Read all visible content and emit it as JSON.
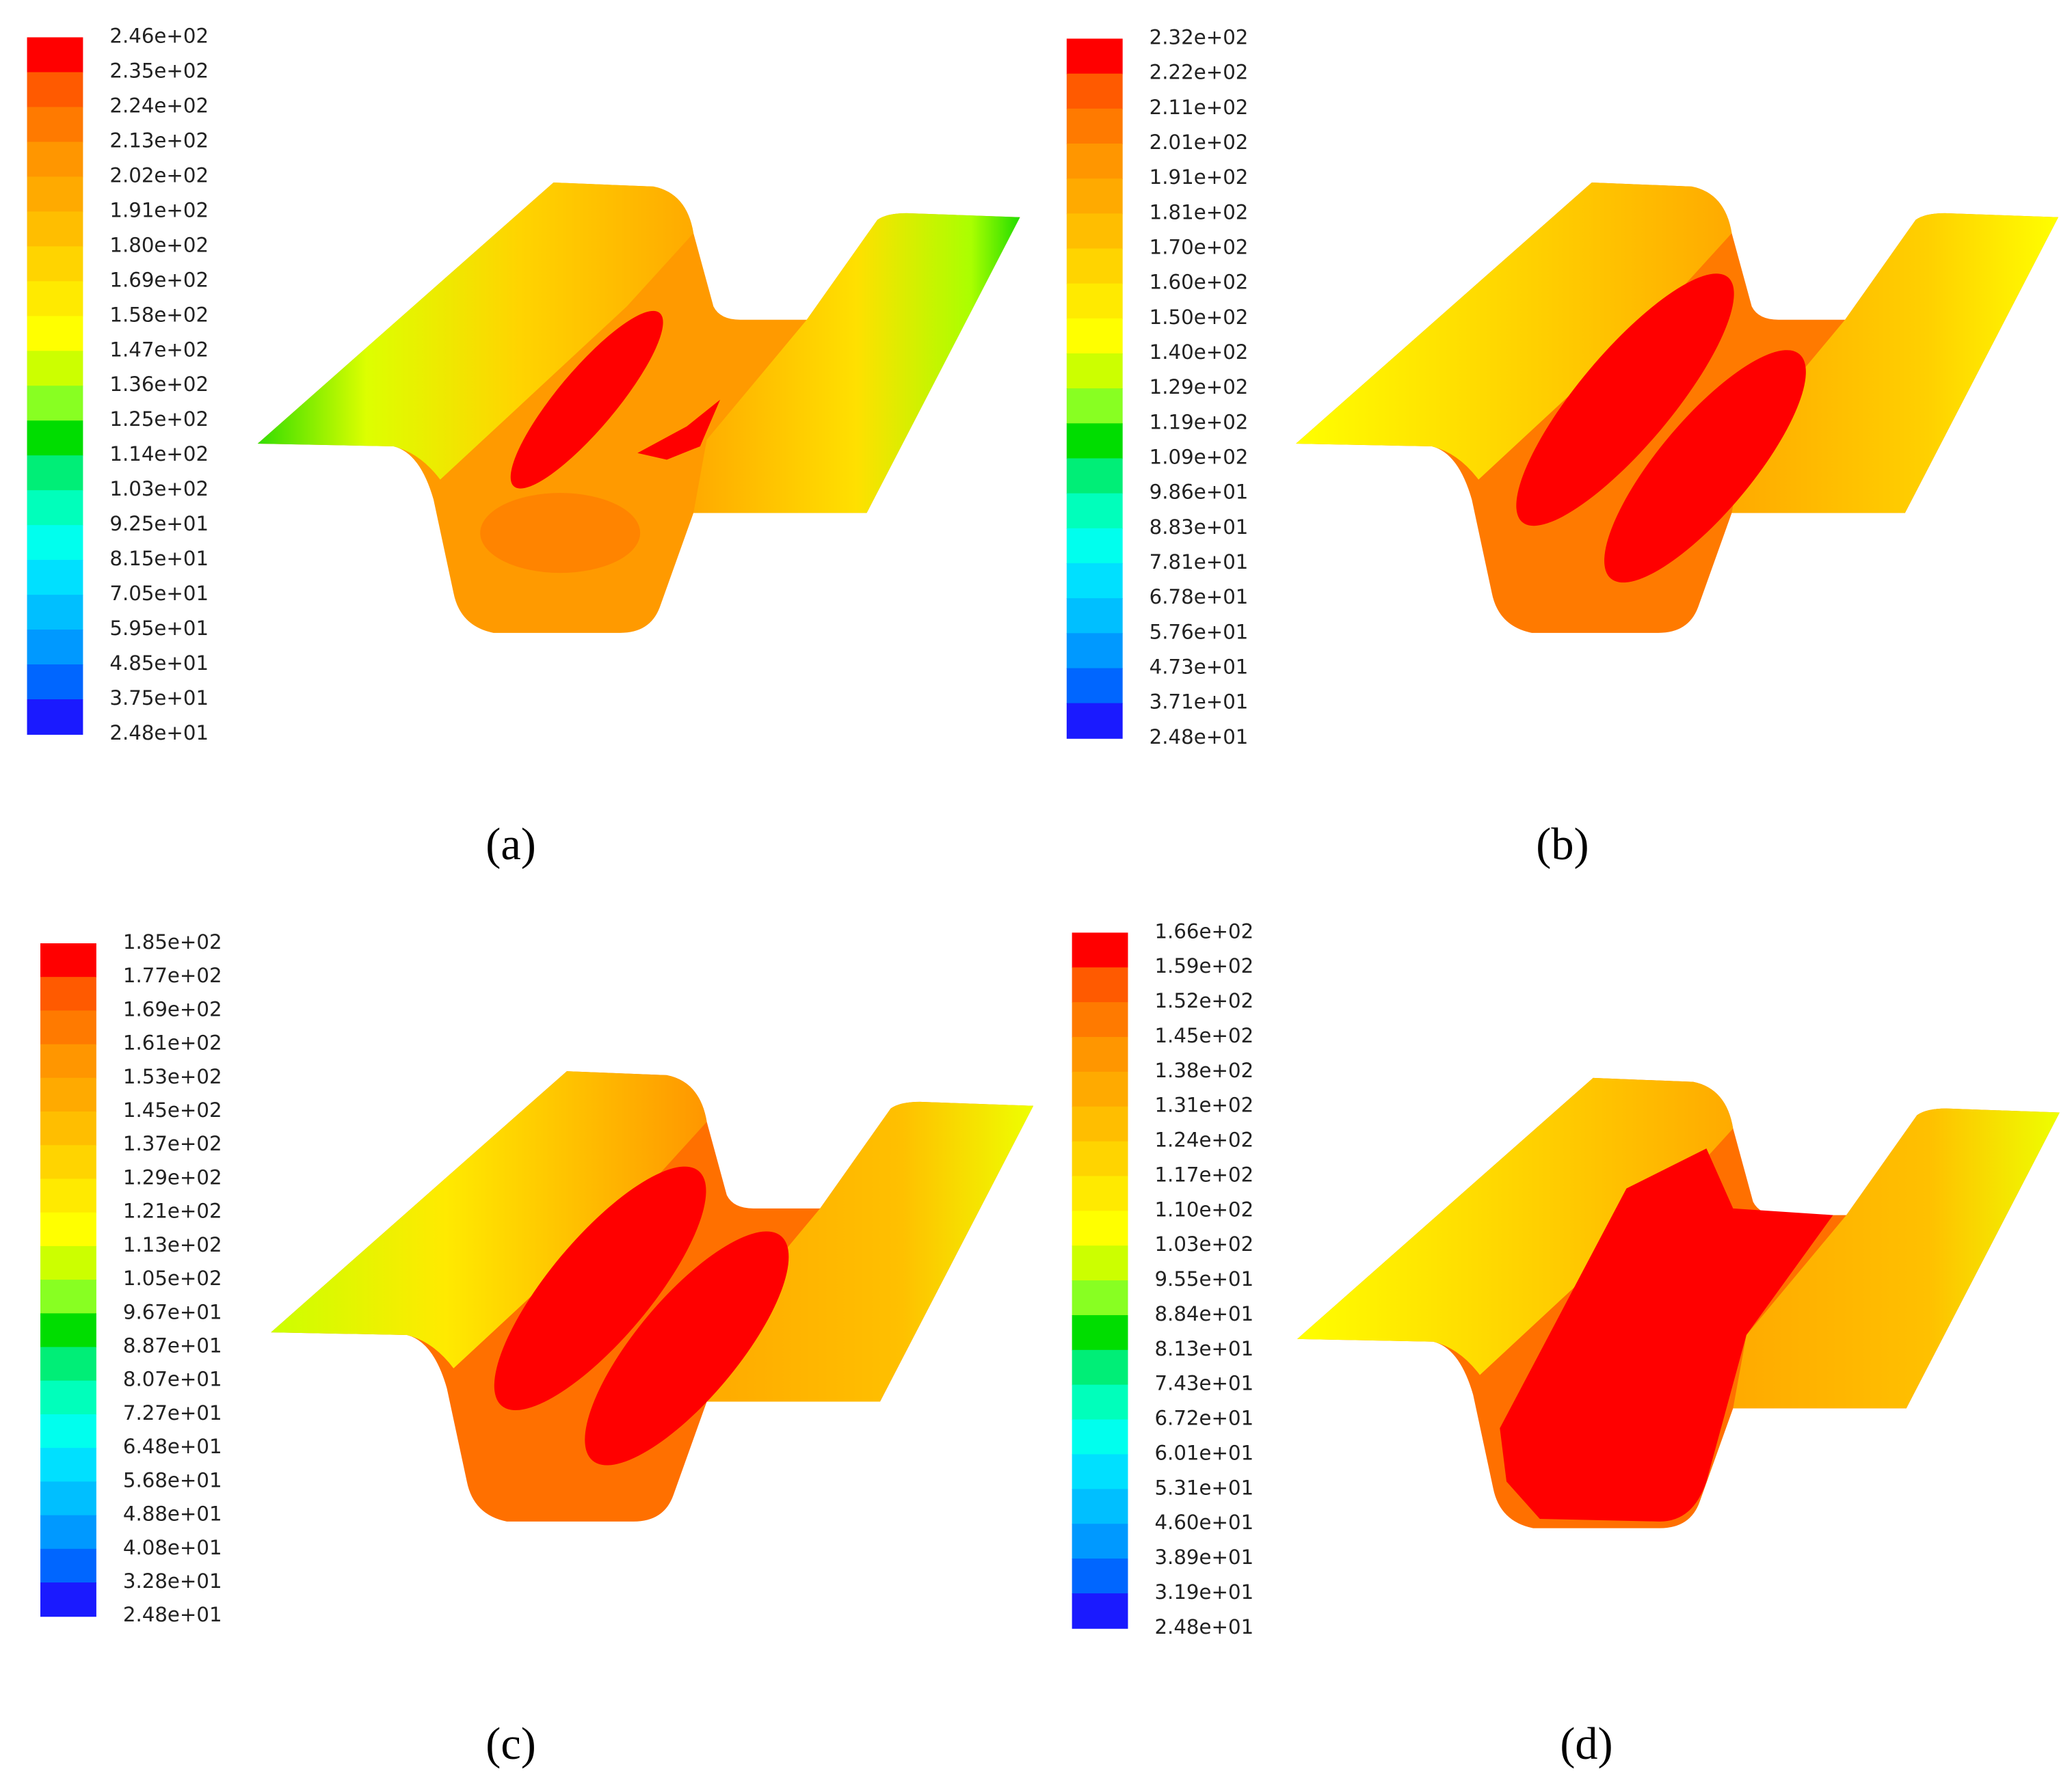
{
  "colorbar_colors": [
    "#ff0000",
    "#ff5a00",
    "#ff7a00",
    "#ff9600",
    "#ffaa00",
    "#ffbe00",
    "#ffd400",
    "#ffea00",
    "#ffff00",
    "#ccff00",
    "#88ff22",
    "#00dd00",
    "#00ee77",
    "#00ffbb",
    "#00ffee",
    "#00e0ff",
    "#00bfff",
    "#0099ff",
    "#0066ff",
    "#1a1aff"
  ],
  "panels": [
    {
      "caption": "(a)",
      "levels": [
        "2.46e+02",
        "2.35e+02",
        "2.24e+02",
        "2.13e+02",
        "2.02e+02",
        "1.91e+02",
        "1.80e+02",
        "1.69e+02",
        "1.58e+02",
        "1.47e+02",
        "1.36e+02",
        "1.25e+02",
        "1.14e+02",
        "1.03e+02",
        "9.25e+01",
        "8.15e+01",
        "7.05e+01",
        "5.95e+01",
        "4.85e+01",
        "3.75e+01",
        "2.48e+01"
      ]
    },
    {
      "caption": "(b)",
      "levels": [
        "2.32e+02",
        "2.22e+02",
        "2.11e+02",
        "2.01e+02",
        "1.91e+02",
        "1.81e+02",
        "1.70e+02",
        "1.60e+02",
        "1.50e+02",
        "1.40e+02",
        "1.29e+02",
        "1.19e+02",
        "1.09e+02",
        "9.86e+01",
        "8.83e+01",
        "7.81e+01",
        "6.78e+01",
        "5.76e+01",
        "4.73e+01",
        "3.71e+01",
        "2.48e+01"
      ]
    },
    {
      "caption": "(c)",
      "levels": [
        "1.85e+02",
        "1.77e+02",
        "1.69e+02",
        "1.61e+02",
        "1.53e+02",
        "1.45e+02",
        "1.37e+02",
        "1.29e+02",
        "1.21e+02",
        "1.13e+02",
        "1.05e+02",
        "9.67e+01",
        "8.87e+01",
        "8.07e+01",
        "7.27e+01",
        "6.48e+01",
        "5.68e+01",
        "4.88e+01",
        "4.08e+01",
        "3.28e+01",
        "2.48e+01"
      ]
    },
    {
      "caption": "(d)",
      "levels": [
        "1.66e+02",
        "1.59e+02",
        "1.52e+02",
        "1.45e+02",
        "1.38e+02",
        "1.31e+02",
        "1.24e+02",
        "1.17e+02",
        "1.10e+02",
        "1.03e+02",
        "9.55e+01",
        "8.84e+01",
        "8.13e+01",
        "7.43e+01",
        "6.72e+01",
        "6.01e+01",
        "5.31e+01",
        "4.60e+01",
        "3.89e+01",
        "3.19e+01",
        "2.48e+01"
      ]
    }
  ]
}
